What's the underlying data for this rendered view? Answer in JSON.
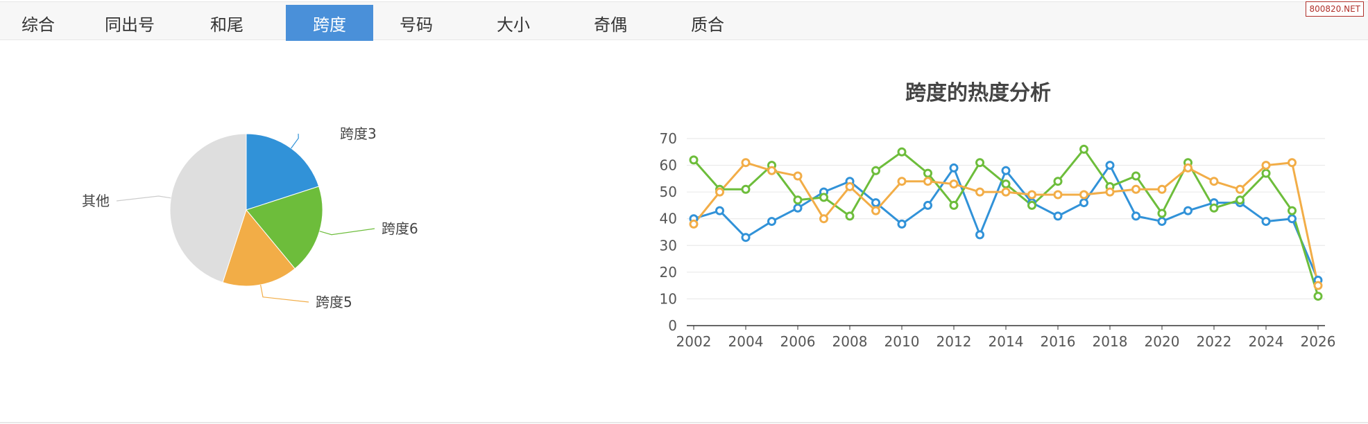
{
  "watermark": "800820.NET",
  "tabs": [
    {
      "label": "综合",
      "active": false
    },
    {
      "label": "同出号",
      "active": false
    },
    {
      "label": "和尾",
      "active": false
    },
    {
      "label": "跨度",
      "active": true
    },
    {
      "label": "号码",
      "active": false
    },
    {
      "label": "大小",
      "active": false
    },
    {
      "label": "奇偶",
      "active": false
    },
    {
      "label": "质合",
      "active": false
    }
  ],
  "colors": {
    "blue": "#3192d8",
    "green": "#6dbd3b",
    "orange": "#f2ad47",
    "gray": "#dedede",
    "accent_tab": "#4a90d9"
  },
  "chart_data": [
    {
      "type": "pie",
      "slices": [
        {
          "label": "跨度3",
          "value": 20,
          "color": "#3192d8"
        },
        {
          "label": "跨度6",
          "value": 19,
          "color": "#6dbd3b"
        },
        {
          "label": "跨度5",
          "value": 16,
          "color": "#f2ad47"
        },
        {
          "label": "其他",
          "value": 45,
          "color": "#dedede"
        }
      ]
    },
    {
      "type": "line",
      "title": "跨度的热度分析",
      "x": [
        2002,
        2003,
        2004,
        2005,
        2006,
        2007,
        2008,
        2009,
        2010,
        2011,
        2012,
        2013,
        2014,
        2015,
        2016,
        2017,
        2018,
        2019,
        2020,
        2021,
        2022,
        2023,
        2024,
        2025,
        2026
      ],
      "xticks": [
        "2002",
        "2004",
        "2006",
        "2008",
        "2010",
        "2012",
        "2014",
        "2016",
        "2018",
        "2020",
        "2022",
        "2024",
        "2026"
      ],
      "yticks": [
        "0",
        "10",
        "20",
        "30",
        "40",
        "50",
        "60",
        "70"
      ],
      "ylim": [
        0,
        70
      ],
      "grid": true,
      "series": [
        {
          "color": "#3192d8",
          "values": [
            40,
            43,
            33,
            39,
            44,
            50,
            54,
            46,
            38,
            45,
            59,
            34,
            58,
            46,
            41,
            46,
            60,
            41,
            39,
            43,
            46,
            46,
            39,
            40,
            17
          ]
        },
        {
          "color": "#6dbd3b",
          "values": [
            62,
            51,
            51,
            60,
            47,
            48,
            41,
            58,
            65,
            57,
            45,
            61,
            53,
            45,
            54,
            66,
            52,
            56,
            42,
            61,
            44,
            47,
            57,
            43,
            11
          ]
        },
        {
          "color": "#f2ad47",
          "values": [
            38,
            50,
            61,
            58,
            56,
            40,
            52,
            43,
            54,
            54,
            53,
            50,
            50,
            49,
            49,
            49,
            50,
            51,
            51,
            59,
            54,
            51,
            60,
            61,
            15
          ]
        }
      ]
    }
  ]
}
